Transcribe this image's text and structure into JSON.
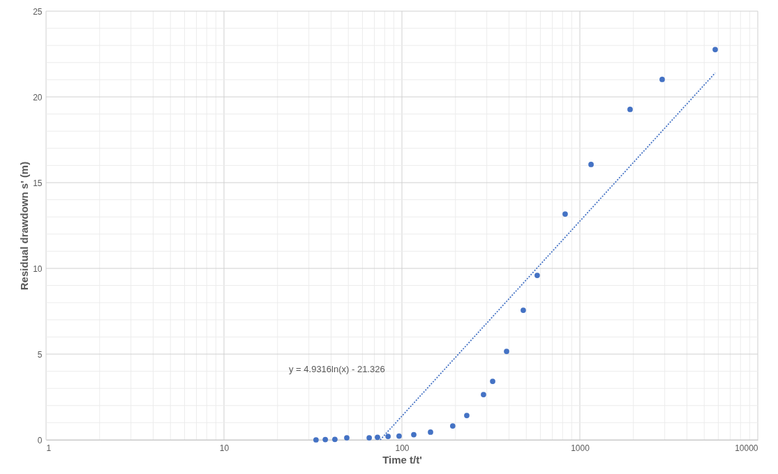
{
  "chart_data": {
    "type": "scatter",
    "xlabel": "Time t/t'",
    "ylabel": "Residual drawdown  s' (m)",
    "log": "x",
    "grid": true,
    "marker": "circle",
    "xlim": [
      1,
      10000
    ],
    "xticks": [
      1,
      {
        "value": 2,
        "label": null
      },
      {
        "value": 3,
        "label": null
      },
      {
        "value": 4,
        "label": null
      },
      {
        "value": 5,
        "label": null
      },
      {
        "value": 6,
        "label": null
      },
      {
        "value": 7,
        "label": null
      },
      {
        "value": 8,
        "label": null
      },
      {
        "value": 9,
        "label": null
      },
      10,
      {
        "value": 20,
        "label": null
      },
      {
        "value": 30,
        "label": null
      },
      {
        "value": 40,
        "label": null
      },
      {
        "value": 50,
        "label": null
      },
      {
        "value": 60,
        "label": null
      },
      {
        "value": 70,
        "label": null
      },
      {
        "value": 80,
        "label": null
      },
      {
        "value": 90,
        "label": null
      },
      100,
      {
        "value": 200,
        "label": null
      },
      {
        "value": 300,
        "label": null
      },
      {
        "value": 400,
        "label": null
      },
      {
        "value": 500,
        "label": null
      },
      {
        "value": 600,
        "label": null
      },
      {
        "value": 700,
        "label": null
      },
      {
        "value": 800,
        "label": null
      },
      {
        "value": 900,
        "label": null
      },
      1000,
      {
        "value": 2000,
        "label": null
      },
      {
        "value": 3000,
        "label": null
      },
      {
        "value": 4000,
        "label": null
      },
      {
        "value": 5000,
        "label": null
      },
      {
        "value": 6000,
        "label": null
      },
      {
        "value": 7000,
        "label": null
      },
      {
        "value": 8000,
        "label": null
      },
      {
        "value": 9000,
        "label": null
      },
      10000
    ],
    "ylim": [
      0,
      25
    ],
    "yticks": [
      0,
      {
        "value": 1,
        "label": null
      },
      {
        "value": 2,
        "label": null
      },
      {
        "value": 3,
        "label": null
      },
      {
        "value": 4,
        "label": null
      },
      5,
      {
        "value": 6,
        "label": null
      },
      {
        "value": 7,
        "label": null
      },
      {
        "value": 8,
        "label": null
      },
      {
        "value": 9,
        "label": null
      },
      10,
      {
        "value": 11,
        "label": null
      },
      {
        "value": 12,
        "label": null
      },
      {
        "value": 13,
        "label": null
      },
      {
        "value": 14,
        "label": null
      },
      15,
      {
        "value": 16,
        "label": null
      },
      {
        "value": 17,
        "label": null
      },
      {
        "value": 18,
        "label": null
      },
      {
        "value": 19,
        "label": null
      },
      20,
      {
        "value": 21,
        "label": null
      },
      {
        "value": 22,
        "label": null
      },
      {
        "value": 23,
        "label": null
      },
      {
        "value": 24,
        "label": null
      },
      25
    ],
    "series": [
      {
        "color": "#4472c4",
        "x": [
          32.9,
          37.1,
          42,
          49,
          65.5,
          72.9,
          83.6,
          96.4,
          116.6,
          144.8,
          193,
          231.5,
          287.5,
          323.6,
          387.5,
          481,
          576,
          827,
          1156,
          1916,
          2902,
          5766
        ],
        "values": [
          0,
          0.02,
          0.03,
          0.12,
          0.12,
          0.15,
          0.2,
          0.22,
          0.3,
          0.45,
          0.81,
          1.42,
          2.64,
          3.41,
          5.16,
          7.56,
          9.59,
          13.17,
          16.06,
          19.27,
          21.02,
          22.76
        ]
      },
      {
        "type": "line",
        "color": "#4472c4",
        "line_style": "dotted",
        "marker": "none",
        "x": [
          75.5,
          5766
        ],
        "values": [
          0,
          21.4
        ]
      }
    ],
    "annotations": [
      "y = 4.9316ln(x) - 21.326"
    ]
  }
}
